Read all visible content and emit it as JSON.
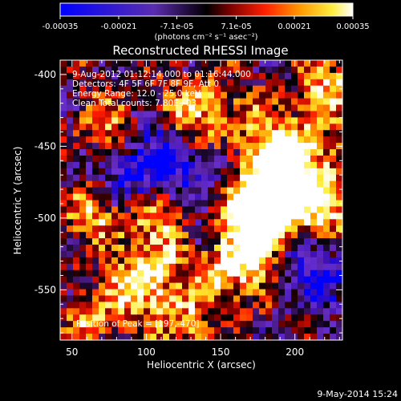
{
  "colorbar": {
    "tick_labels": [
      "-0.00035",
      "-0.00021",
      "-7.1e-05",
      "7.1e-05",
      "0.00021",
      "0.00035"
    ],
    "tick_values": [
      -0.00035,
      -0.00021,
      -7.1e-05,
      7.1e-05,
      0.00021,
      0.00035
    ],
    "range": [
      -0.00035,
      0.00035
    ],
    "units_label": "(photons cm⁻² s⁻¹ asec⁻²)"
  },
  "chart_data": {
    "type": "heatmap",
    "title": "Reconstructed RHESSI Image",
    "xlabel": "Heliocentric X (arcsec)",
    "ylabel": "Heliocentric Y (arcsec)",
    "xlim": [
      42,
      232
    ],
    "ylim": [
      -585,
      -390
    ],
    "x_ticks": [
      50,
      100,
      150,
      200
    ],
    "y_ticks": [
      -400,
      -450,
      -500,
      -550
    ],
    "x_tick_labels": [
      "50",
      "100",
      "150",
      "200"
    ],
    "y_tick_labels": [
      "-400",
      "-450",
      "-500",
      "-550"
    ],
    "peak": [
      197,
      -470
    ],
    "colormap": [
      "#0000ff",
      "#3b0fb0",
      "#6a2fd0",
      "#3a1060",
      "#000000",
      "#8a0000",
      "#ff1a00",
      "#ff9900",
      "#ffee33",
      "#ffffff"
    ]
  },
  "annotations": {
    "time_range": "9-Aug-2012 01:12:14.000 to 01:16:44.000",
    "detectors": "Detectors: 4F 5F 6F 7F 8F 9F, Att 0",
    "energy": "Energy Range: 12.0 - 25.0 keV",
    "clean": "Clean    Total counts: 7.80E+03",
    "peak": "Position of Peak = [197,-470]"
  },
  "footer": {
    "date": "9-May-2014 15:24"
  }
}
